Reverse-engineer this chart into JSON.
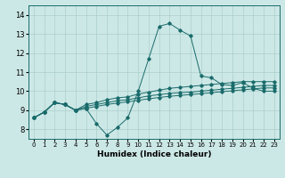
{
  "xlabel": "Humidex (Indice chaleur)",
  "ylabel": "",
  "bg_color": "#cce8e6",
  "line_color": "#1a6b6b",
  "grid_color": "#aacfcc",
  "xlim": [
    -0.5,
    23.5
  ],
  "ylim": [
    7.5,
    14.5
  ],
  "xticks": [
    0,
    1,
    2,
    3,
    4,
    5,
    6,
    7,
    8,
    9,
    10,
    11,
    12,
    13,
    14,
    15,
    16,
    17,
    18,
    19,
    20,
    21,
    22,
    23
  ],
  "yticks": [
    8,
    9,
    10,
    11,
    12,
    13,
    14
  ],
  "series": [
    [
      8.6,
      8.9,
      9.4,
      9.3,
      9.0,
      9.1,
      8.3,
      7.7,
      8.1,
      8.6,
      10.0,
      11.7,
      13.4,
      13.55,
      13.2,
      12.9,
      10.8,
      10.7,
      10.35,
      10.3,
      10.45,
      10.15,
      10.0,
      10.0
    ],
    [
      8.6,
      8.9,
      9.4,
      9.3,
      9.0,
      9.3,
      9.4,
      9.55,
      9.65,
      9.7,
      9.85,
      9.95,
      10.05,
      10.15,
      10.2,
      10.25,
      10.3,
      10.35,
      10.4,
      10.45,
      10.5,
      10.5,
      10.5,
      10.5
    ],
    [
      8.6,
      8.9,
      9.4,
      9.3,
      9.0,
      9.2,
      9.3,
      9.4,
      9.5,
      9.55,
      9.65,
      9.75,
      9.82,
      9.88,
      9.92,
      9.95,
      10.0,
      10.05,
      10.1,
      10.15,
      10.2,
      10.25,
      10.3,
      10.3
    ],
    [
      8.6,
      8.9,
      9.4,
      9.3,
      9.0,
      9.1,
      9.2,
      9.3,
      9.38,
      9.44,
      9.52,
      9.6,
      9.67,
      9.73,
      9.78,
      9.82,
      9.87,
      9.92,
      9.97,
      10.02,
      10.07,
      10.12,
      10.17,
      10.17
    ]
  ]
}
